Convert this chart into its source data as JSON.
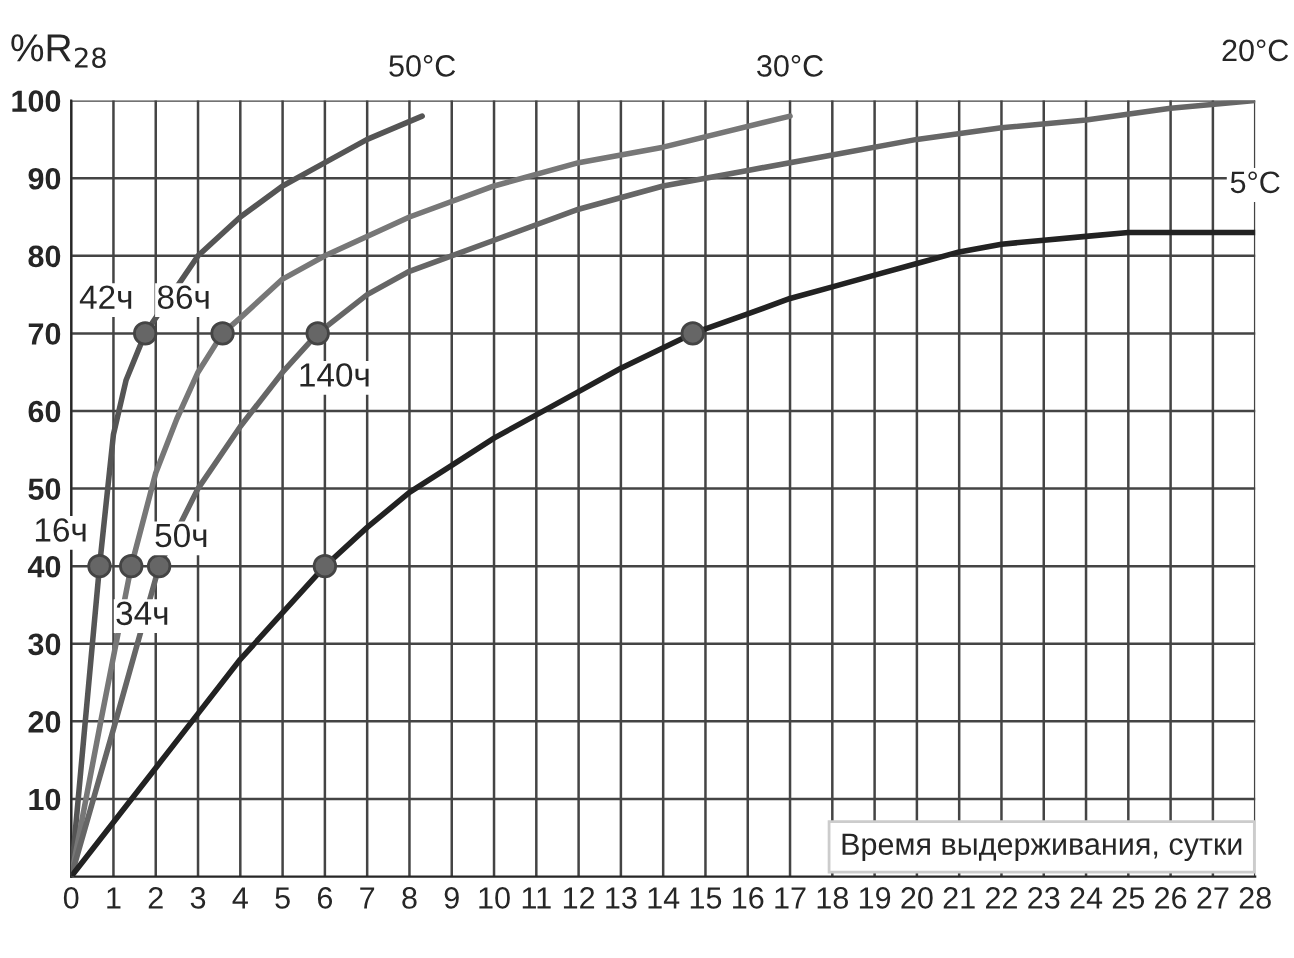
{
  "chart_data": {
    "type": "line",
    "ylabel": "%R$_{28}$",
    "xlabel": "Время выдерживания, сутки",
    "xlim": [
      0,
      28
    ],
    "xticks": [
      0,
      1,
      2,
      3,
      4,
      5,
      6,
      7,
      8,
      9,
      10,
      11,
      12,
      13,
      14,
      15,
      16,
      17,
      18,
      19,
      20,
      21,
      22,
      23,
      24,
      25,
      26,
      27,
      28
    ],
    "ylim": [
      0,
      100
    ],
    "yticks": [
      10,
      20,
      30,
      40,
      50,
      60,
      70,
      80,
      90,
      100
    ],
    "grid": true,
    "series": [
      {
        "name": "50°C",
        "color": "#555555",
        "x": [
          0,
          0.3,
          0.67,
          1.0,
          1.3,
          1.75,
          2.5,
          3,
          4,
          5,
          6,
          7,
          8.3
        ],
        "values": [
          0,
          18,
          40,
          57,
          64,
          70,
          76,
          80,
          85,
          89,
          92,
          95,
          98
        ]
      },
      {
        "name": "30°C",
        "color": "#777777",
        "x": [
          0,
          0.7,
          1.42,
          2,
          2.5,
          3,
          3.58,
          4,
          5,
          6,
          8,
          10,
          12,
          14,
          17
        ],
        "values": [
          0,
          20,
          40,
          52,
          59,
          65,
          70,
          72,
          77,
          80,
          85,
          89,
          92,
          94,
          98
        ]
      },
      {
        "name": "20°C",
        "color": "#666666",
        "x": [
          0,
          1,
          2.08,
          3,
          4,
          5,
          5.83,
          7,
          8,
          10,
          12,
          14,
          16,
          18,
          20,
          22,
          24,
          26,
          28
        ],
        "values": [
          0,
          19,
          40,
          50,
          58,
          65,
          70,
          75,
          78,
          82,
          86,
          89,
          91,
          93,
          95,
          96.5,
          97.5,
          99,
          100
        ]
      },
      {
        "name": "5°C",
        "color": "#222222",
        "x": [
          0,
          1,
          2,
          3,
          4,
          5,
          6,
          7,
          8,
          9,
          10,
          11,
          12,
          13,
          14.7,
          16,
          17,
          18,
          19,
          20,
          21,
          22,
          23,
          24,
          25,
          26,
          27,
          28
        ],
        "values": [
          0,
          7,
          14,
          21,
          28,
          34,
          40,
          45,
          49.5,
          53,
          56.5,
          59.5,
          62.5,
          65.5,
          70,
          72.5,
          74.5,
          76,
          77.5,
          79,
          80.5,
          81.5,
          82,
          82.5,
          83,
          83,
          83,
          83
        ]
      },
      {
        "type": "scatter",
        "marker": "circle",
        "color": "#666666",
        "x": [
          0.67,
          1.42,
          2.08,
          6,
          1.75,
          3.58,
          5.83,
          14.7
        ],
        "values": [
          40,
          40,
          40,
          40,
          70,
          70,
          70,
          70
        ]
      }
    ],
    "annotations": [
      {
        "text": "16ч",
        "x": 0.67,
        "y": 40
      },
      {
        "text": "34ч",
        "x": 1.42,
        "y": 40
      },
      {
        "text": "50ч",
        "x": 2.08,
        "y": 40
      },
      {
        "text": "42ч",
        "x": 1.75,
        "y": 70
      },
      {
        "text": "86ч",
        "x": 3.58,
        "y": 70
      },
      {
        "text": "140ч",
        "x": 5.83,
        "y": 70
      }
    ]
  }
}
